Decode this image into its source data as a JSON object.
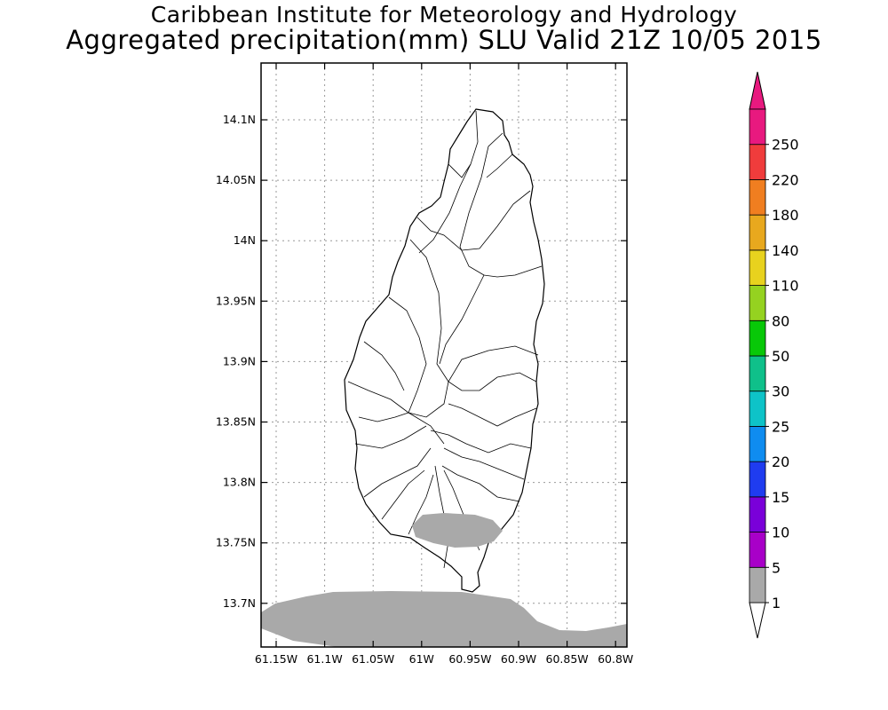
{
  "header": {
    "title": "Caribbean Institute for Meteorology and Hydrology",
    "subtitle": "Aggregated precipitation(mm) SLU Valid 21Z 10/05 2015"
  },
  "map": {
    "lat_ticks": [
      "14.1N",
      "14.05N",
      "14N",
      "13.95N",
      "13.9N",
      "13.85N",
      "13.8N",
      "13.75N",
      "13.7N"
    ],
    "lon_ticks": [
      "61.15W",
      "61.1W",
      "61.05W",
      "61W",
      "60.95W",
      "60.9W",
      "60.85W",
      "60.8W"
    ],
    "precip_fill_color": "#a9a9a9",
    "grid": true
  },
  "colorbar": {
    "levels": [
      "1",
      "5",
      "10",
      "15",
      "20",
      "25",
      "30",
      "50",
      "80",
      "110",
      "140",
      "180",
      "220",
      "250"
    ],
    "colors": [
      "#a9a9a9",
      "#a800c8",
      "#7a00d9",
      "#1f3cf0",
      "#0f8cf0",
      "#0ec3c8",
      "#0fc08a",
      "#08c808",
      "#95d220",
      "#e8d21e",
      "#e8a81e",
      "#f07e20",
      "#f03c3c",
      "#e8197f"
    ],
    "under_color": "#ffffff",
    "over_color": "#e8197f"
  }
}
